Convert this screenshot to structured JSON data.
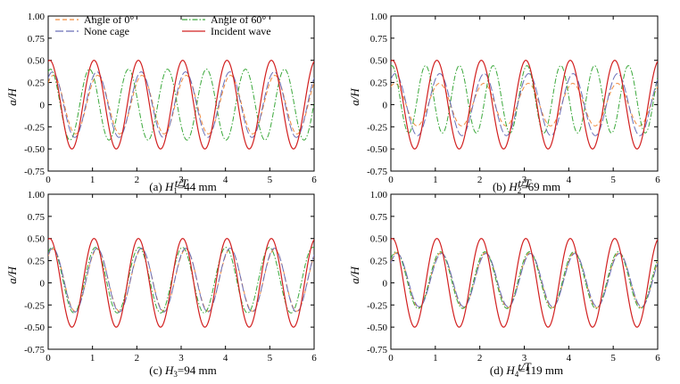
{
  "colors": {
    "angle0": "#f08a3c",
    "angle60": "#3aa83a",
    "none_cage": "#6a6fb8",
    "incident": "#d22020",
    "axis": "#000000"
  },
  "chart_data": [
    {
      "type": "line",
      "panel": "a",
      "caption": {
        "prefix": "(a) ",
        "var": "H",
        "sub": "1",
        "value": "=44 mm"
      },
      "xlabel": "t/T",
      "ylabel": "a/H",
      "xlim": [
        0,
        6
      ],
      "ylim": [
        -0.75,
        1.0
      ],
      "xticks": [
        "0",
        "1",
        "2",
        "3",
        "4",
        "5",
        "6"
      ],
      "yticks": [
        "1.00",
        "0.75",
        "0.50",
        "0.25",
        "0",
        "-0.25",
        "-0.50",
        "-0.75"
      ],
      "legend": {
        "show": true,
        "placement": "top-left",
        "columns": 2
      },
      "series": [
        {
          "name": "Angle of 0°",
          "key": "angle0",
          "dash": "dash",
          "amplitude": 0.33,
          "phase": 0.85,
          "period": 1.0,
          "offset": 0.0
        },
        {
          "name": "Angle of 60°",
          "key": "angle60",
          "dash": "dashdot",
          "amplitude": 0.4,
          "phase": 1.2,
          "period": 0.88,
          "offset": 0.0
        },
        {
          "name": "None cage",
          "key": "none_cage",
          "dash": "longdash",
          "amplitude": 0.37,
          "phase": 0.95,
          "period": 1.0,
          "offset": 0.0
        },
        {
          "name": "Incident wave",
          "key": "incident",
          "dash": "solid",
          "amplitude": 0.5,
          "phase": 1.35,
          "period": 1.0,
          "offset": 0.0
        }
      ]
    },
    {
      "type": "line",
      "panel": "b",
      "caption": {
        "prefix": "(b) ",
        "var": "H",
        "sub": "2",
        "value": "=69 mm"
      },
      "xlabel": "t/T",
      "ylabel": "a/H",
      "xlim": [
        0,
        6
      ],
      "ylim": [
        -0.75,
        1.0
      ],
      "xticks": [
        "0",
        "1",
        "2",
        "3",
        "4",
        "5",
        "6"
      ],
      "yticks": [
        "1.00",
        "0.75",
        "0.50",
        "0.25",
        "0",
        "-0.25",
        "-0.50",
        "-0.75"
      ],
      "legend": {
        "show": false
      },
      "series": [
        {
          "name": "Angle of 0°",
          "key": "angle0",
          "dash": "dash",
          "amplitude": 0.24,
          "phase": 1.0,
          "period": 1.0,
          "offset": 0.0
        },
        {
          "name": "Angle of 60°",
          "key": "angle60",
          "dash": "dashdot",
          "amplitude": 0.38,
          "phase": 1.4,
          "period": 0.76,
          "offset": 0.06
        },
        {
          "name": "None cage",
          "key": "none_cage",
          "dash": "longdash",
          "amplitude": 0.35,
          "phase": 0.95,
          "period": 1.0,
          "offset": 0.0
        },
        {
          "name": "Incident wave",
          "key": "incident",
          "dash": "solid",
          "amplitude": 0.5,
          "phase": 1.35,
          "period": 1.0,
          "offset": 0.0
        }
      ]
    },
    {
      "type": "line",
      "panel": "c",
      "caption": {
        "prefix": "(c) ",
        "var": "H",
        "sub": "3",
        "value": "=94 mm"
      },
      "xlabel": "",
      "ylabel": "a/H",
      "xlim": [
        0,
        6
      ],
      "ylim": [
        -0.75,
        1.0
      ],
      "xticks": [
        "0",
        "1",
        "2",
        "3",
        "4",
        "5",
        "6"
      ],
      "yticks": [
        "1.00",
        "0.75",
        "0.50",
        "0.25",
        "0",
        "-0.25",
        "-0.50",
        "-0.75"
      ],
      "legend": {
        "show": false
      },
      "series": [
        {
          "name": "Angle of 0°",
          "key": "angle0",
          "dash": "dash",
          "amplitude": 0.35,
          "phase": 0.9,
          "period": 1.0,
          "offset": 0.03
        },
        {
          "name": "Angle of 60°",
          "key": "angle60",
          "dash": "dashdot",
          "amplitude": 0.37,
          "phase": 1.0,
          "period": 0.98,
          "offset": 0.03
        },
        {
          "name": "None cage",
          "key": "none_cage",
          "dash": "longdash",
          "amplitude": 0.36,
          "phase": 0.92,
          "period": 1.0,
          "offset": 0.03
        },
        {
          "name": "Incident wave",
          "key": "incident",
          "dash": "solid",
          "amplitude": 0.5,
          "phase": 1.35,
          "period": 1.0,
          "offset": 0.0
        }
      ]
    },
    {
      "type": "line",
      "panel": "d",
      "caption": {
        "prefix": "(d) ",
        "var": "H",
        "sub": "4",
        "value": "=119 mm"
      },
      "xlabel": "t/T",
      "ylabel": "a/H",
      "xlim": [
        0,
        6
      ],
      "ylim": [
        -0.75,
        1.0
      ],
      "xticks": [
        "0",
        "1",
        "2",
        "3",
        "4",
        "5",
        "6"
      ],
      "yticks": [
        "1.00",
        "0.75",
        "0.50",
        "0.25",
        "0",
        "-0.25",
        "-0.50",
        "-0.75"
      ],
      "legend": {
        "show": false
      },
      "series": [
        {
          "name": "Angle of 0°",
          "key": "angle0",
          "dash": "dash",
          "amplitude": 0.31,
          "phase": 0.75,
          "period": 1.0,
          "offset": 0.03
        },
        {
          "name": "Angle of 60°",
          "key": "angle60",
          "dash": "dashdot",
          "amplitude": 0.32,
          "phase": 0.85,
          "period": 1.0,
          "offset": 0.03
        },
        {
          "name": "None cage",
          "key": "none_cage",
          "dash": "longdash",
          "amplitude": 0.3,
          "phase": 0.7,
          "period": 1.0,
          "offset": 0.03
        },
        {
          "name": "Incident wave",
          "key": "incident",
          "dash": "solid",
          "amplitude": 0.5,
          "phase": 1.35,
          "period": 1.0,
          "offset": 0.0
        }
      ]
    }
  ]
}
